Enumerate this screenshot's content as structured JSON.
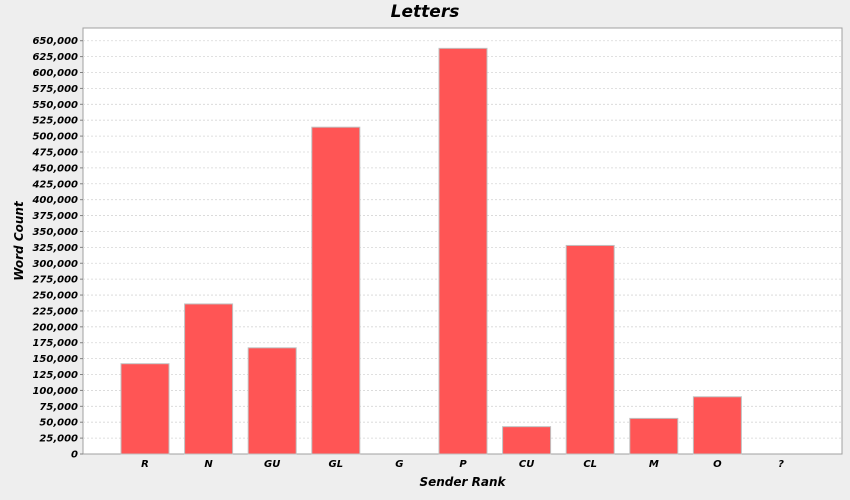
{
  "chart_data": {
    "type": "bar",
    "title": "Letters",
    "xlabel": "Sender Rank",
    "ylabel": "Word Count",
    "categories": [
      "R",
      "N",
      "GU",
      "GL",
      "G",
      "P",
      "CU",
      "CL",
      "M",
      "O",
      "?"
    ],
    "values": [
      142000,
      236000,
      167000,
      514000,
      0,
      638000,
      43000,
      328000,
      56000,
      90000,
      0
    ],
    "ylim": [
      0,
      670000
    ],
    "ytick_step": 25000,
    "yticks_max": 650000,
    "grid": true,
    "bar_color": "#ff5555",
    "plot_background": "#ffffff",
    "grid_color": "#d6d6d6"
  }
}
